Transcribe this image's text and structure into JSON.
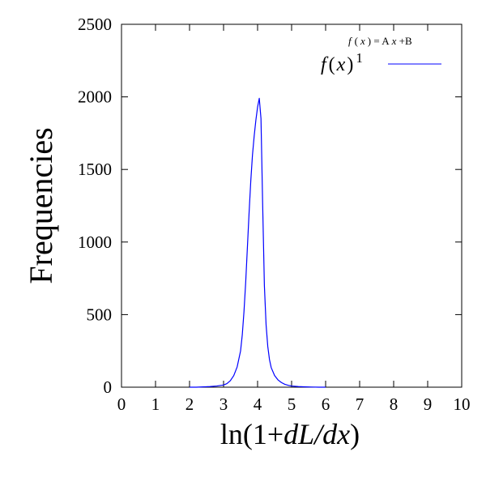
{
  "chart_data": {
    "type": "line",
    "title": "",
    "xlabel_parts": {
      "prefix": "ln(1+",
      "italic": "dL/dx",
      "suffix": ")"
    },
    "ylabel": "Frequencies",
    "xlim": [
      0,
      10
    ],
    "ylim": [
      0,
      2500
    ],
    "xticks": [
      0,
      1,
      2,
      3,
      4,
      5,
      6,
      7,
      8,
      9,
      10
    ],
    "yticks": [
      0,
      500,
      1000,
      1500,
      2000,
      2500
    ],
    "grid": false,
    "legend_position": "top-right",
    "annotation": {
      "f": "f",
      "x_open": "(",
      "x": "x",
      "x_close": ")",
      "eq": " = A",
      "x2": "x",
      "rest": " +B"
    },
    "series": [
      {
        "name_parts": {
          "f": "f",
          "open": "(",
          "x": "x",
          "close": ")",
          "sup": "1"
        },
        "color": "#0000ff",
        "x": [
          2.0,
          2.2,
          2.4,
          2.6,
          2.8,
          3.0,
          3.1,
          3.2,
          3.3,
          3.4,
          3.5,
          3.55,
          3.6,
          3.65,
          3.7,
          3.75,
          3.8,
          3.85,
          3.9,
          3.95,
          4.0,
          4.05,
          4.1,
          4.15,
          4.2,
          4.25,
          4.3,
          4.35,
          4.4,
          4.5,
          4.6,
          4.7,
          4.8,
          4.9,
          5.0,
          5.2,
          5.4,
          5.6,
          5.8,
          6.0
        ],
        "y": [
          0,
          0,
          2,
          4,
          8,
          15,
          25,
          45,
          80,
          140,
          250,
          360,
          520,
          720,
          960,
          1200,
          1420,
          1600,
          1730,
          1840,
          1930,
          1990,
          1850,
          1250,
          700,
          430,
          280,
          190,
          135,
          80,
          50,
          32,
          20,
          13,
          8,
          4,
          2,
          1,
          0,
          0
        ]
      }
    ]
  }
}
